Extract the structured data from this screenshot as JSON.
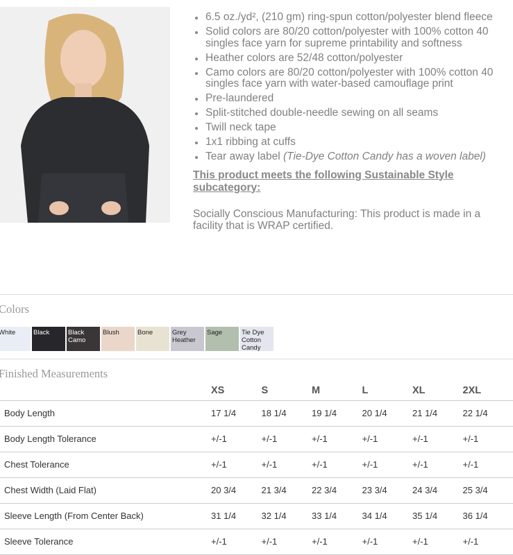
{
  "product": {
    "image_alt": "Model wearing black crop fleece sweatshirt"
  },
  "features": [
    "6.5 oz./yd², (210 gm) ring-spun cotton/polyester blend fleece",
    "Solid colors are 80/20 cotton/polyester with 100% cotton 40 singles face yarn for supreme printability and softness",
    "Heather colors are 52/48 cotton/polyester",
    "Camo colors are 80/20 cotton/polyester with 100% cotton 40 singles face yarn with water-based camouflage print",
    "Pre-laundered",
    "Split-stitched double-needle sewing on all seams",
    "Twill neck tape",
    "1x1 ribbing at cuffs"
  ],
  "feature_last": {
    "text": "Tear away label ",
    "italic": "(Tie-Dye Cotton Candy has a woven label)"
  },
  "sustainable": {
    "heading": "This product meets the following Sustainable Style subcategory:",
    "body": "Socially Conscious Manufacturing: This product is made in a facility that is WRAP certified."
  },
  "colors": {
    "title": "Colors",
    "swatches": [
      {
        "name": "White",
        "color": "#e9edf5"
      },
      {
        "name": "Black",
        "color": "#26262b"
      },
      {
        "name": "Black Camo",
        "color": "#3a3638"
      },
      {
        "name": "Blush",
        "color": "#ead7ca"
      },
      {
        "name": "Bone",
        "color": "#e8e2d2"
      },
      {
        "name": "Grey Heather",
        "color": "#c9c8d0"
      },
      {
        "name": "Sage",
        "color": "#b2bfae"
      },
      {
        "name": "Tie Dye Cotton Candy",
        "color": "#e3e6ee"
      }
    ]
  },
  "measurements": {
    "title": "Finished Measurements",
    "sizes": [
      "XS",
      "S",
      "M",
      "L",
      "XL",
      "2XL"
    ],
    "rows": [
      {
        "label": "Body Length",
        "values": [
          "17 1/4",
          "18 1/4",
          "19 1/4",
          "20 1/4",
          "21 1/4",
          "22 1/4"
        ]
      },
      {
        "label": "Body Length Tolerance",
        "values": [
          "+/-1",
          "+/-1",
          "+/-1",
          "+/-1",
          "+/-1",
          "+/-1"
        ]
      },
      {
        "label": "Chest Tolerance",
        "values": [
          "+/-1",
          "+/-1",
          "+/-1",
          "+/-1",
          "+/-1",
          "+/-1"
        ]
      },
      {
        "label": "Chest Width (Laid Flat)",
        "values": [
          "20 3/4",
          "21 3/4",
          "22 3/4",
          "23 3/4",
          "24 3/4",
          "25 3/4"
        ]
      },
      {
        "label": "Sleeve Length (From Center Back)",
        "values": [
          "31 1/4",
          "32 1/4",
          "33 1/4",
          "34 1/4",
          "35 1/4",
          "36 1/4"
        ]
      },
      {
        "label": "Sleeve Tolerance",
        "values": [
          "+/-1",
          "+/-1",
          "+/-1",
          "+/-1",
          "+/-1",
          "+/-1"
        ]
      }
    ]
  }
}
